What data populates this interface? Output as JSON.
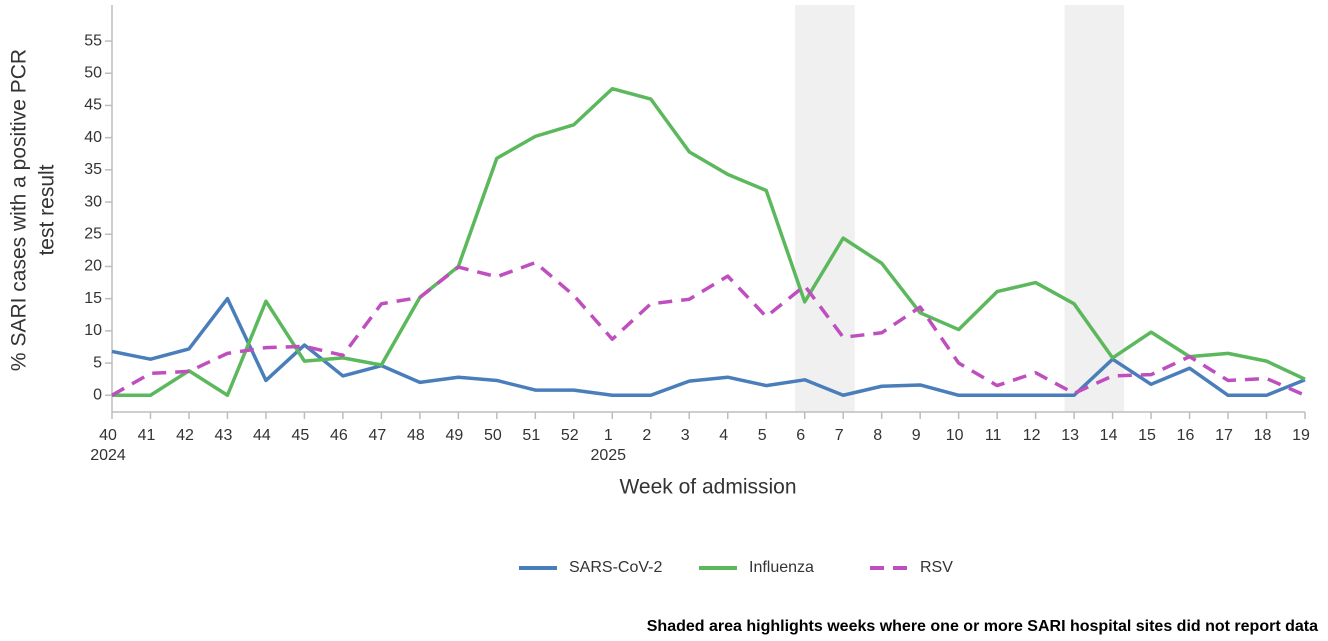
{
  "chart_data": {
    "type": "line",
    "ylabel_lines": [
      "% SARI cases with a positive PCR",
      "test result"
    ],
    "xlabel": "Week of admission",
    "categories": [
      "40",
      "41",
      "42",
      "43",
      "44",
      "45",
      "46",
      "47",
      "48",
      "49",
      "50",
      "51",
      "52",
      "1",
      "2",
      "3",
      "4",
      "5",
      "6",
      "7",
      "8",
      "9",
      "10",
      "11",
      "12",
      "13",
      "14",
      "15",
      "16",
      "17",
      "18",
      "19"
    ],
    "year_labels": [
      {
        "category_index": 0,
        "label": "2024"
      },
      {
        "category_index": 13,
        "label": "2025"
      }
    ],
    "shaded_weeks": [
      [
        "6",
        "7"
      ],
      [
        "13",
        "14"
      ]
    ],
    "series": [
      {
        "name": "SARS-CoV-2",
        "color": "#4a7ebb",
        "dash": false,
        "values": [
          6.8,
          5.6,
          7.2,
          15,
          2.3,
          7.8,
          3,
          4.6,
          2,
          2.8,
          2.3,
          0.8,
          0.8,
          0,
          0,
          2.2,
          2.8,
          1.5,
          2.4,
          0,
          1.4,
          1.6,
          0,
          0,
          0,
          0,
          5.6,
          1.7,
          4.2,
          0,
          0,
          2.4
        ]
      },
      {
        "name": "Influenza",
        "color": "#5cb85c",
        "dash": false,
        "values": [
          0,
          0,
          3.8,
          0,
          14.6,
          5.3,
          5.8,
          4.7,
          15.2,
          20,
          36.8,
          40.2,
          42,
          47.6,
          46,
          37.8,
          34.3,
          31.8,
          14.5,
          24.4,
          20.5,
          12.8,
          10.2,
          16.1,
          17.5,
          14.2,
          5.8,
          9.8,
          6,
          6.5,
          5.3,
          2.5
        ]
      },
      {
        "name": "RSV",
        "color": "#bf4fbf",
        "dash": true,
        "values": [
          0,
          3.4,
          3.7,
          6.5,
          7.4,
          7.6,
          6.2,
          14.2,
          15.2,
          19.9,
          18.4,
          20.6,
          15.5,
          8.7,
          14.2,
          14.9,
          18.5,
          12.2,
          17,
          9,
          9.7,
          13.7,
          5,
          1.5,
          3.5,
          0.3,
          3,
          3.2,
          6,
          2.3,
          2.6,
          0
        ]
      }
    ],
    "ylim": [
      -2.6,
      60.6
    ],
    "yticks": [
      0,
      5,
      10,
      15,
      20,
      25,
      30,
      35,
      40,
      45,
      50,
      55
    ],
    "note": "Shaded area highlights weeks where one or more SARI hospital sites did not report data"
  }
}
